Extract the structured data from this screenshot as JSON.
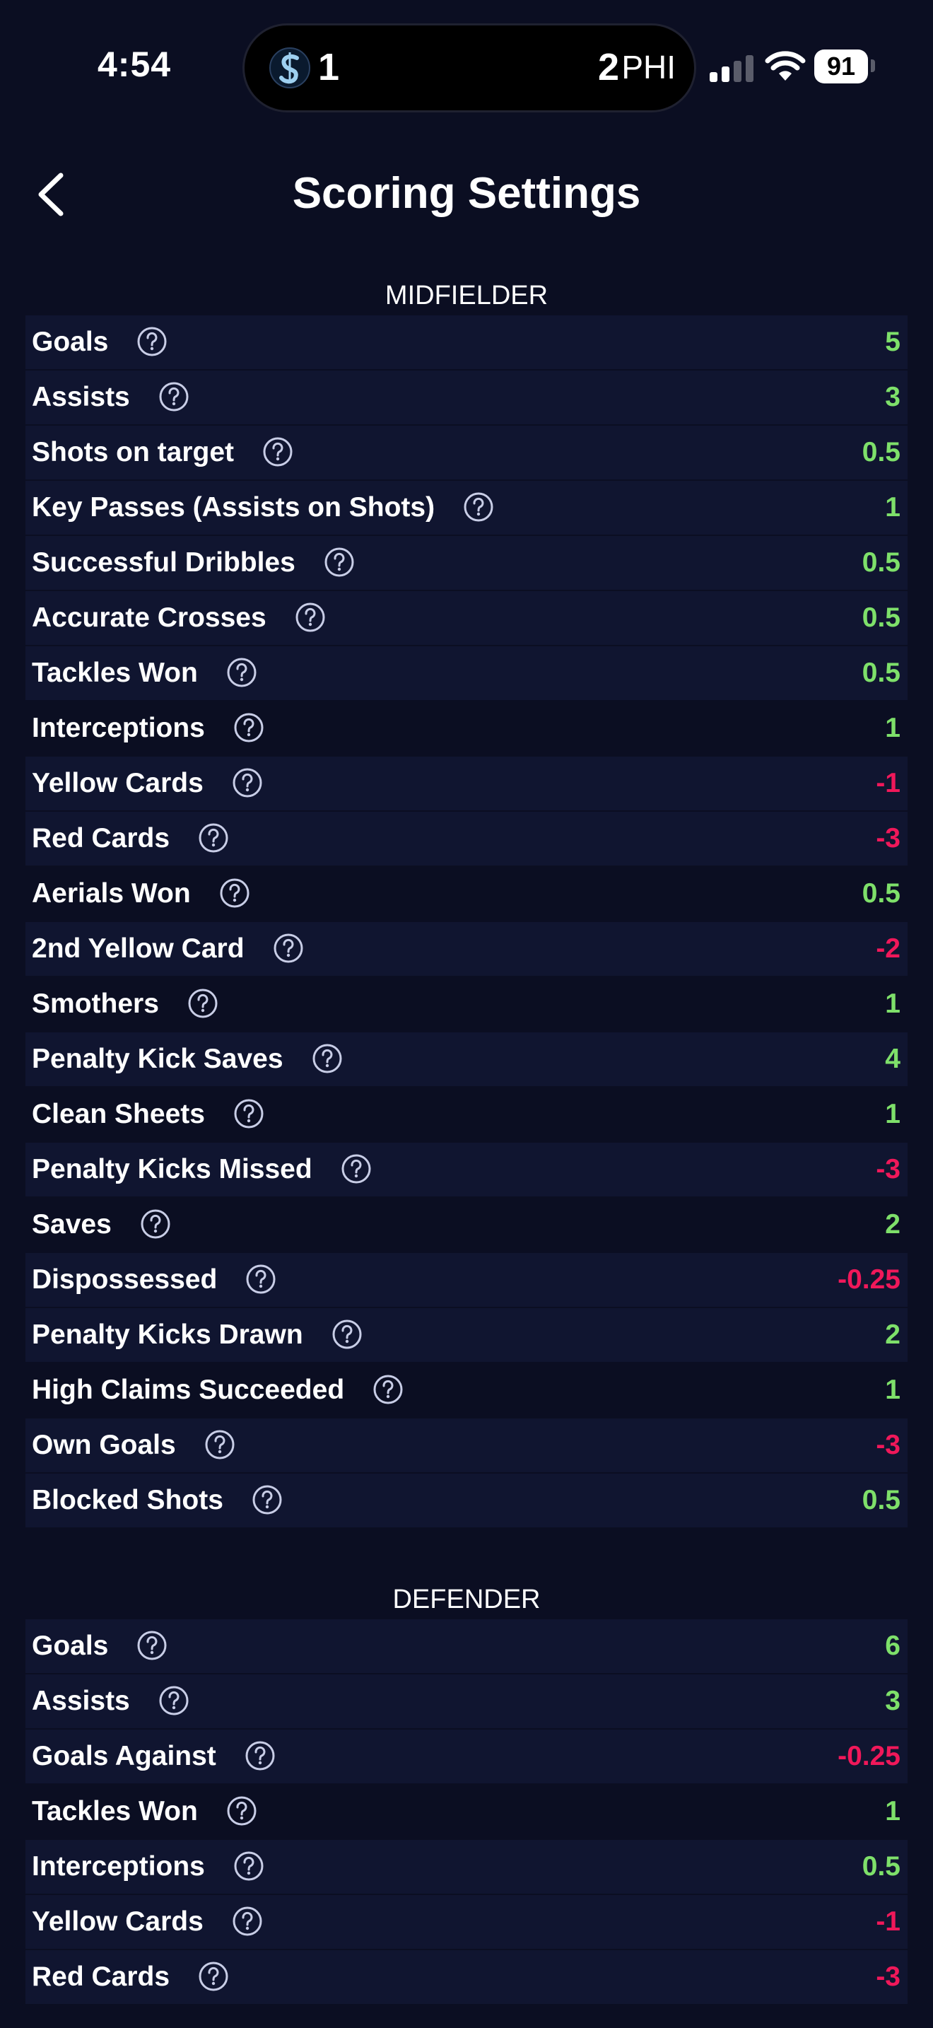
{
  "status_bar": {
    "time": "4:54",
    "live_activity": {
      "home_score": "1",
      "away_score": "2",
      "away_team": "PHI"
    },
    "battery": "91"
  },
  "header": {
    "title": "Scoring Settings"
  },
  "colors": {
    "background": "#0b0e22",
    "row_alt": "#101530",
    "positive": "#7ee06a",
    "negative": "#f0185a"
  },
  "sections": [
    {
      "title": "MIDFIELDER",
      "rows": [
        {
          "label": "Goals",
          "value": "5"
        },
        {
          "label": "Assists",
          "value": "3"
        },
        {
          "label": "Shots on target",
          "value": "0.5"
        },
        {
          "label": "Key Passes (Assists on Shots)",
          "value": "1"
        },
        {
          "label": "Successful Dribbles",
          "value": "0.5"
        },
        {
          "label": "Accurate Crosses",
          "value": "0.5"
        },
        {
          "label": "Tackles Won",
          "value": "0.5"
        },
        {
          "label": "Interceptions",
          "value": "1"
        },
        {
          "label": "Yellow Cards",
          "value": "-1"
        },
        {
          "label": "Red Cards",
          "value": "-3"
        },
        {
          "label": "Aerials Won",
          "value": "0.5"
        },
        {
          "label": "2nd Yellow Card",
          "value": "-2"
        },
        {
          "label": "Smothers",
          "value": "1"
        },
        {
          "label": "Penalty Kick Saves",
          "value": "4"
        },
        {
          "label": "Clean Sheets",
          "value": "1"
        },
        {
          "label": "Penalty Kicks Missed",
          "value": "-3"
        },
        {
          "label": "Saves",
          "value": "2"
        },
        {
          "label": "Dispossessed",
          "value": "-0.25"
        },
        {
          "label": "Penalty Kicks Drawn",
          "value": "2"
        },
        {
          "label": "High Claims Succeeded",
          "value": "1"
        },
        {
          "label": "Own Goals",
          "value": "-3"
        },
        {
          "label": "Blocked Shots",
          "value": "0.5"
        }
      ]
    },
    {
      "title": "DEFENDER",
      "rows": [
        {
          "label": "Goals",
          "value": "6"
        },
        {
          "label": "Assists",
          "value": "3"
        },
        {
          "label": "Goals Against",
          "value": "-0.25"
        },
        {
          "label": "Tackles Won",
          "value": "1"
        },
        {
          "label": "Interceptions",
          "value": "0.5"
        },
        {
          "label": "Yellow Cards",
          "value": "-1"
        },
        {
          "label": "Red Cards",
          "value": "-3"
        }
      ]
    }
  ]
}
